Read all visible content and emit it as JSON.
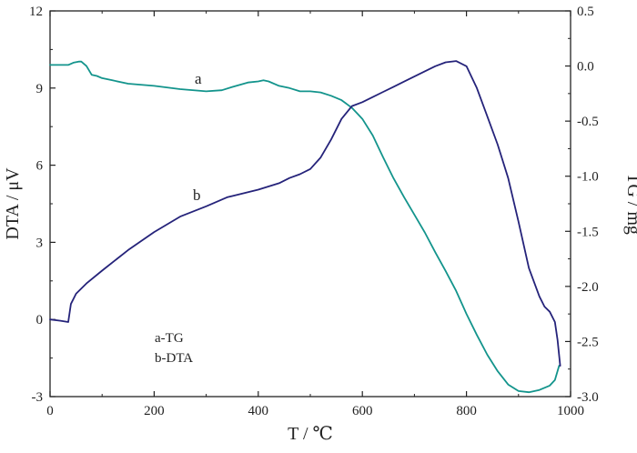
{
  "chart_data": {
    "type": "line",
    "title": "",
    "xlabel": "T / ℃",
    "ylabel_left": "DTA / μV",
    "ylabel_right": "TG / mg",
    "xlim": [
      0,
      1000
    ],
    "ylim_left": [
      -3,
      12
    ],
    "ylim_right": [
      -3.0,
      0.5
    ],
    "x_ticks": [
      "0",
      "200",
      "400",
      "600",
      "800",
      "1000"
    ],
    "y_left_ticks": [
      "-3",
      "0",
      "3",
      "6",
      "9",
      "12"
    ],
    "y_right_ticks": [
      "-3.0",
      "-2.5",
      "-2.0",
      "-1.5",
      "-1.0",
      "-0.5",
      "0.0",
      "0.5"
    ],
    "grid": false,
    "legend": [
      "a-TG",
      "b-DTA"
    ],
    "series": [
      {
        "name": "a",
        "label": "a",
        "axis": "right",
        "color": "#13948c",
        "x": [
          0,
          20,
          35,
          45,
          55,
          60,
          70,
          80,
          90,
          100,
          120,
          150,
          200,
          250,
          300,
          330,
          350,
          380,
          400,
          410,
          420,
          440,
          460,
          480,
          500,
          520,
          540,
          560,
          580,
          600,
          620,
          640,
          660,
          680,
          700,
          720,
          740,
          760,
          780,
          800,
          820,
          840,
          860,
          880,
          900,
          920,
          940,
          960,
          970,
          978
        ],
        "y": [
          0.01,
          0.01,
          0.01,
          0.03,
          0.04,
          0.04,
          0.0,
          -0.08,
          -0.09,
          -0.11,
          -0.13,
          -0.16,
          -0.18,
          -0.21,
          -0.23,
          -0.22,
          -0.19,
          -0.15,
          -0.14,
          -0.13,
          -0.14,
          -0.18,
          -0.2,
          -0.23,
          -0.23,
          -0.24,
          -0.27,
          -0.31,
          -0.38,
          -0.48,
          -0.63,
          -0.83,
          -1.02,
          -1.19,
          -1.35,
          -1.51,
          -1.69,
          -1.86,
          -2.04,
          -2.25,
          -2.44,
          -2.62,
          -2.77,
          -2.89,
          -2.95,
          -2.96,
          -2.94,
          -2.9,
          -2.85,
          -2.72
        ]
      },
      {
        "name": "b",
        "label": "b",
        "axis": "left",
        "color": "#25237a",
        "x": [
          0,
          20,
          35,
          40,
          50,
          70,
          100,
          150,
          200,
          250,
          300,
          340,
          360,
          400,
          440,
          460,
          480,
          500,
          520,
          540,
          560,
          580,
          600,
          620,
          640,
          660,
          680,
          700,
          720,
          740,
          760,
          780,
          800,
          820,
          840,
          860,
          880,
          900,
          920,
          940,
          950,
          960,
          970,
          975,
          980
        ],
        "y": [
          0.0,
          -0.05,
          -0.1,
          0.6,
          1.0,
          1.4,
          1.9,
          2.7,
          3.4,
          4.0,
          4.4,
          4.75,
          4.85,
          5.05,
          5.3,
          5.5,
          5.65,
          5.85,
          6.3,
          7.0,
          7.8,
          8.3,
          8.45,
          8.65,
          8.85,
          9.05,
          9.25,
          9.45,
          9.65,
          9.85,
          10.0,
          10.05,
          9.85,
          9.0,
          7.9,
          6.8,
          5.5,
          3.8,
          2.0,
          0.9,
          0.5,
          0.3,
          -0.1,
          -0.8,
          -1.8
        ]
      }
    ]
  }
}
